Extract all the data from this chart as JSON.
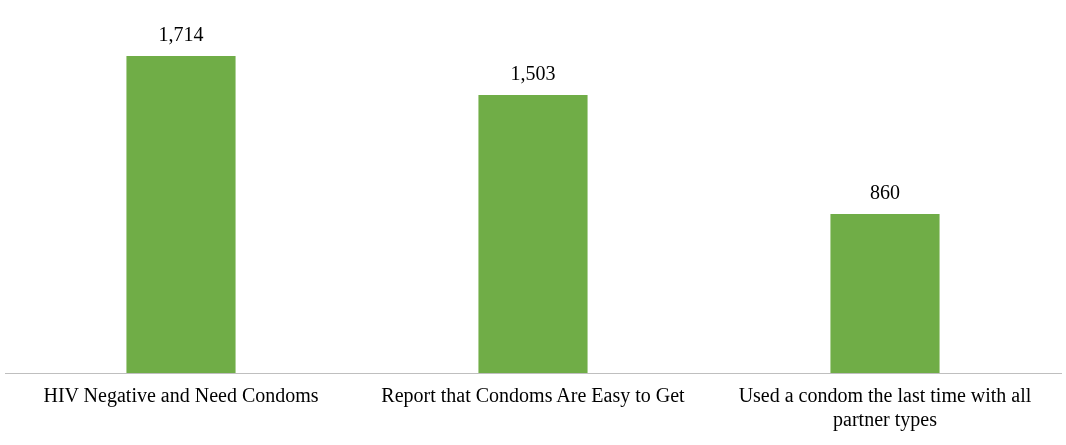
{
  "chart_data": {
    "type": "bar",
    "categories": [
      "HIV Negative and Need Condoms",
      "Report that Condoms Are Easy to Get",
      "Used a condom the last time with all partner types"
    ],
    "values": [
      1714,
      1503,
      860
    ],
    "value_labels": [
      "1,714",
      "1,503",
      "860"
    ],
    "color": "#70ad47",
    "grid": false,
    "legend": false
  }
}
